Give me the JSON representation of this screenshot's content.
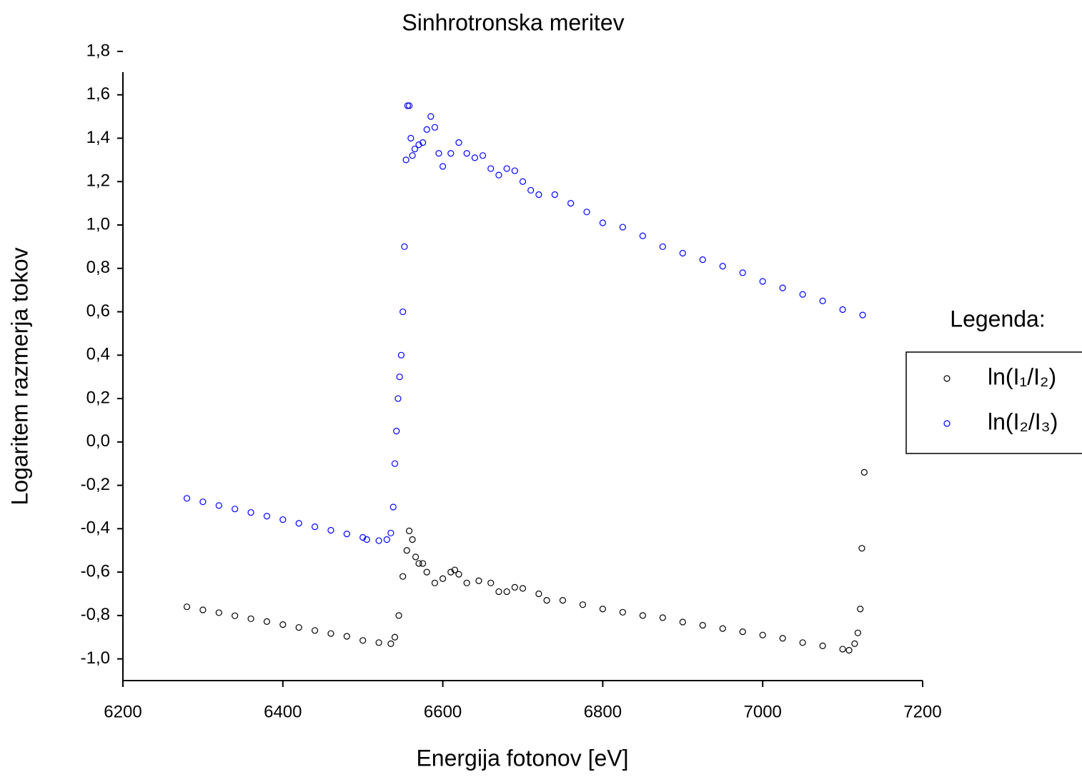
{
  "chart_data": {
    "type": "scatter",
    "title": "Sinhrotronska meritev",
    "x_label": "Energija fotonov [eV]",
    "y_label": "Logaritem razmerja tokov",
    "legend_title": "Legenda:",
    "legend": "right",
    "xlim": [
      6200,
      7200
    ],
    "xticks": [
      6200,
      6400,
      6600,
      6800,
      7000,
      7200
    ],
    "ylim": [
      -1.1,
      1.8
    ],
    "yticks": [
      {
        "value": -1.0,
        "label": "-1,0"
      },
      {
        "value": -0.8,
        "label": "-0,8"
      },
      {
        "value": -0.6,
        "label": "-0,6"
      },
      {
        "value": -0.4,
        "label": "-0,4"
      },
      {
        "value": -0.2,
        "label": "-0,2"
      },
      {
        "value": 0,
        "label": "0,0"
      },
      {
        "value": 0.2,
        "label": "0,2"
      },
      {
        "value": 0.4,
        "label": "0,4"
      },
      {
        "value": 0.6,
        "label": "0,6"
      },
      {
        "value": 0.8,
        "label": "0,8"
      },
      {
        "value": 1.0,
        "label": "1,0"
      },
      {
        "value": 1.2,
        "label": "1,2"
      },
      {
        "value": 1.4,
        "label": "1,4"
      },
      {
        "value": 1.6,
        "label": "1,6"
      },
      {
        "value": 1.8,
        "label": "1,8"
      }
    ],
    "series": [
      {
        "name": "ln(I₁/I₂)",
        "color": "#000000",
        "x": [
          6280,
          6300,
          6320,
          6340,
          6360,
          6380,
          6400,
          6420,
          6440,
          6460,
          6480,
          6500,
          6520,
          6535,
          6540,
          6545,
          6550,
          6555,
          6558,
          6562,
          6566,
          6570,
          6575,
          6580,
          6590,
          6600,
          6610,
          6615,
          6620,
          6630,
          6645,
          6660,
          6670,
          6680,
          6690,
          6700,
          6720,
          6730,
          6750,
          6775,
          6800,
          6825,
          6850,
          6875,
          6900,
          6925,
          6950,
          6975,
          7000,
          7025,
          7050,
          7075,
          7100,
          7108,
          7115,
          7119,
          7122,
          7124,
          7127
        ],
        "values": [
          -0.76,
          -0.774,
          -0.787,
          -0.801,
          -0.815,
          -0.828,
          -0.842,
          -0.855,
          -0.869,
          -0.883,
          -0.896,
          -0.915,
          -0.925,
          -0.93,
          -0.9,
          -0.8,
          -0.62,
          -0.5,
          -0.41,
          -0.45,
          -0.53,
          -0.56,
          -0.56,
          -0.6,
          -0.65,
          -0.63,
          -0.6,
          -0.59,
          -0.61,
          -0.65,
          -0.64,
          -0.65,
          -0.69,
          -0.69,
          -0.67,
          -0.675,
          -0.7,
          -0.73,
          -0.73,
          -0.75,
          -0.77,
          -0.785,
          -0.8,
          -0.81,
          -0.83,
          -0.845,
          -0.86,
          -0.875,
          -0.89,
          -0.905,
          -0.925,
          -0.94,
          -0.955,
          -0.96,
          -0.93,
          -0.88,
          -0.77,
          -0.49,
          -0.14
        ]
      },
      {
        "name": "ln(I₂/I₃)",
        "color": "#0000ff",
        "x": [
          6280,
          6300,
          6320,
          6340,
          6360,
          6380,
          6400,
          6420,
          6440,
          6460,
          6480,
          6500,
          6505,
          6520,
          6530,
          6535,
          6538,
          6540,
          6542,
          6544,
          6546,
          6548,
          6550,
          6552,
          6554,
          6556,
          6558,
          6560,
          6562,
          6565,
          6570,
          6575,
          6580,
          6585,
          6590,
          6595,
          6600,
          6610,
          6620,
          6630,
          6640,
          6650,
          6660,
          6670,
          6680,
          6690,
          6700,
          6710,
          6720,
          6740,
          6760,
          6780,
          6800,
          6825,
          6850,
          6875,
          6900,
          6925,
          6950,
          6975,
          7000,
          7025,
          7050,
          7075,
          7100,
          7125
        ],
        "values": [
          -0.26,
          -0.276,
          -0.293,
          -0.309,
          -0.325,
          -0.342,
          -0.358,
          -0.375,
          -0.391,
          -0.407,
          -0.424,
          -0.44,
          -0.45,
          -0.455,
          -0.45,
          -0.42,
          -0.3,
          -0.1,
          0.05,
          0.2,
          0.3,
          0.4,
          0.6,
          0.9,
          1.3,
          1.55,
          1.55,
          1.4,
          1.32,
          1.35,
          1.37,
          1.38,
          1.44,
          1.5,
          1.45,
          1.33,
          1.27,
          1.33,
          1.38,
          1.33,
          1.31,
          1.32,
          1.26,
          1.23,
          1.26,
          1.25,
          1.2,
          1.16,
          1.14,
          1.14,
          1.1,
          1.06,
          1.01,
          0.99,
          0.95,
          0.9,
          0.87,
          0.84,
          0.81,
          0.78,
          0.74,
          0.71,
          0.68,
          0.65,
          0.61,
          0.585
        ]
      }
    ]
  }
}
